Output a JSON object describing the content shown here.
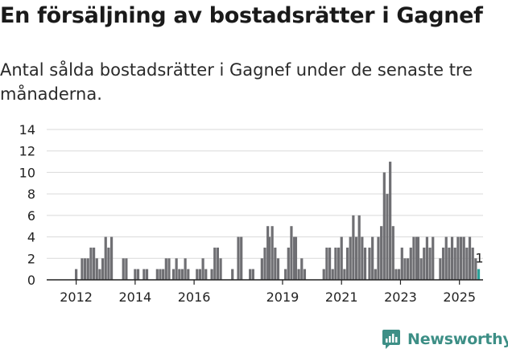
{
  "title": "En försäljning av bostadsrätter i Gagnef",
  "subtitle": "Antal sålda bostadsrätter i Gagnef under de senaste tre månaderna.",
  "brand": {
    "name": "Newsworthy",
    "icon": "newsworthy-logo-icon",
    "color": "#3d8f86"
  },
  "colors": {
    "bar": "#6f6f73",
    "highlight": "#2ba39a",
    "grid": "#d9d9d9",
    "axis": "#222222"
  },
  "chart_data": {
    "type": "bar",
    "ylim": [
      0,
      14
    ],
    "yticks": [
      0,
      2,
      4,
      6,
      8,
      10,
      12,
      14
    ],
    "xticks": [
      {
        "label": "2012",
        "x": 2012
      },
      {
        "label": "2014",
        "x": 2014
      },
      {
        "label": "2016",
        "x": 2016
      },
      {
        "label": "2019",
        "x": 2019
      },
      {
        "label": "2021",
        "x": 2021
      },
      {
        "label": "2023",
        "x": 2023
      },
      {
        "label": "2025",
        "x": 2025
      }
    ],
    "xlim": [
      2011,
      2025.8
    ],
    "grid": true,
    "last_label": "1",
    "series": [
      {
        "values": [
          [
            2012.0,
            1
          ],
          [
            2012.2,
            2
          ],
          [
            2012.3,
            2
          ],
          [
            2012.4,
            2
          ],
          [
            2012.5,
            3
          ],
          [
            2012.6,
            3
          ],
          [
            2012.7,
            2
          ],
          [
            2012.8,
            1
          ],
          [
            2012.9,
            2
          ],
          [
            2013.0,
            4
          ],
          [
            2013.1,
            3
          ],
          [
            2013.2,
            4
          ],
          [
            2013.6,
            2
          ],
          [
            2013.7,
            2
          ],
          [
            2014.0,
            1
          ],
          [
            2014.1,
            1
          ],
          [
            2014.3,
            1
          ],
          [
            2014.4,
            1
          ],
          [
            2014.75,
            1
          ],
          [
            2014.85,
            1
          ],
          [
            2014.95,
            1
          ],
          [
            2015.05,
            2
          ],
          [
            2015.15,
            2
          ],
          [
            2015.3,
            1
          ],
          [
            2015.4,
            2
          ],
          [
            2015.5,
            1
          ],
          [
            2015.6,
            1
          ],
          [
            2015.7,
            2
          ],
          [
            2015.8,
            1
          ],
          [
            2016.1,
            1
          ],
          [
            2016.2,
            1
          ],
          [
            2016.3,
            2
          ],
          [
            2016.4,
            1
          ],
          [
            2016.6,
            1
          ],
          [
            2016.7,
            3
          ],
          [
            2016.8,
            3
          ],
          [
            2016.9,
            2
          ],
          [
            2017.3,
            1
          ],
          [
            2017.5,
            4
          ],
          [
            2017.6,
            4
          ],
          [
            2017.9,
            1
          ],
          [
            2018.0,
            1
          ],
          [
            2018.3,
            2
          ],
          [
            2018.4,
            3
          ],
          [
            2018.5,
            5
          ],
          [
            2018.55,
            4
          ],
          [
            2018.65,
            5
          ],
          [
            2018.75,
            3
          ],
          [
            2018.85,
            2
          ],
          [
            2019.1,
            1
          ],
          [
            2019.2,
            3
          ],
          [
            2019.3,
            5
          ],
          [
            2019.4,
            4
          ],
          [
            2019.45,
            4
          ],
          [
            2019.55,
            1
          ],
          [
            2019.65,
            2
          ],
          [
            2019.75,
            1
          ],
          [
            2020.4,
            1
          ],
          [
            2020.5,
            3
          ],
          [
            2020.6,
            3
          ],
          [
            2020.7,
            1
          ],
          [
            2020.8,
            3
          ],
          [
            2020.9,
            3
          ],
          [
            2021.0,
            4
          ],
          [
            2021.1,
            1
          ],
          [
            2021.2,
            3
          ],
          [
            2021.3,
            4
          ],
          [
            2021.4,
            6
          ],
          [
            2021.5,
            4
          ],
          [
            2021.6,
            6
          ],
          [
            2021.7,
            4
          ],
          [
            2021.8,
            3
          ],
          [
            2021.95,
            3
          ],
          [
            2022.05,
            4
          ],
          [
            2022.15,
            1
          ],
          [
            2022.25,
            4
          ],
          [
            2022.35,
            5
          ],
          [
            2022.45,
            10
          ],
          [
            2022.55,
            8
          ],
          [
            2022.65,
            11
          ],
          [
            2022.75,
            5
          ],
          [
            2022.85,
            1
          ],
          [
            2022.95,
            1
          ],
          [
            2023.05,
            3
          ],
          [
            2023.15,
            2
          ],
          [
            2023.25,
            2
          ],
          [
            2023.35,
            3
          ],
          [
            2023.45,
            4
          ],
          [
            2023.55,
            4
          ],
          [
            2023.6,
            4
          ],
          [
            2023.7,
            2
          ],
          [
            2023.8,
            3
          ],
          [
            2023.9,
            4
          ],
          [
            2024.0,
            3
          ],
          [
            2024.1,
            4
          ],
          [
            2024.35,
            2
          ],
          [
            2024.45,
            3
          ],
          [
            2024.55,
            4
          ],
          [
            2024.65,
            3
          ],
          [
            2024.75,
            4
          ],
          [
            2024.85,
            3
          ],
          [
            2024.95,
            4
          ],
          [
            2025.05,
            4
          ],
          [
            2025.15,
            4
          ],
          [
            2025.25,
            3
          ],
          [
            2025.35,
            4
          ],
          [
            2025.45,
            3
          ],
          [
            2025.55,
            2
          ],
          [
            2025.65,
            1
          ]
        ]
      }
    ]
  }
}
